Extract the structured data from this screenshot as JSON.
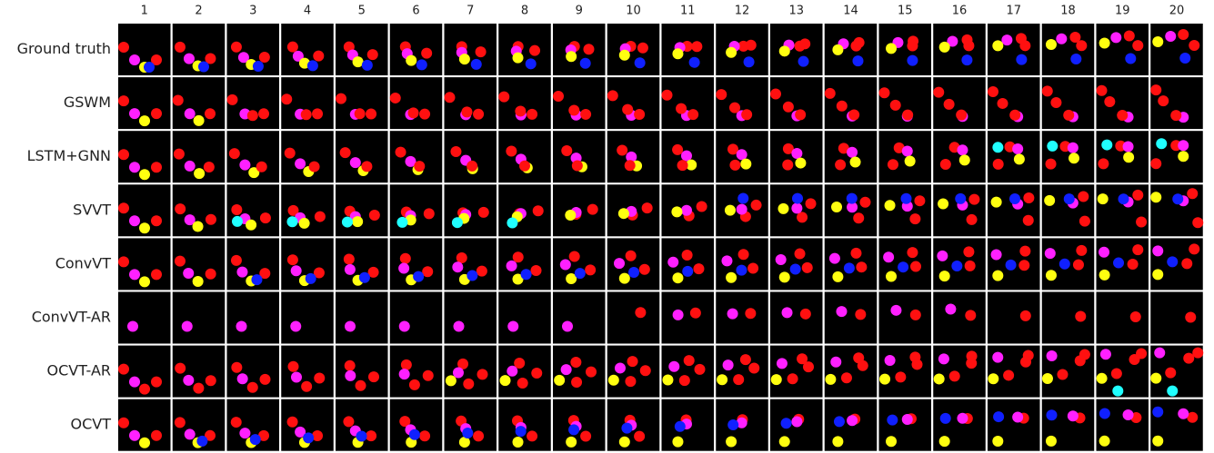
{
  "columns": [
    "1",
    "2",
    "3",
    "4",
    "5",
    "6",
    "7",
    "8",
    "9",
    "10",
    "11",
    "12",
    "13",
    "14",
    "15",
    "16",
    "17",
    "18",
    "19",
    "20"
  ],
  "rows": [
    "Ground truth",
    "GSWM",
    "LSTM+GNN",
    "SVVT",
    "ConvVT",
    "ConvVT-AR",
    "OCVT-AR",
    "OCVT"
  ]
}
